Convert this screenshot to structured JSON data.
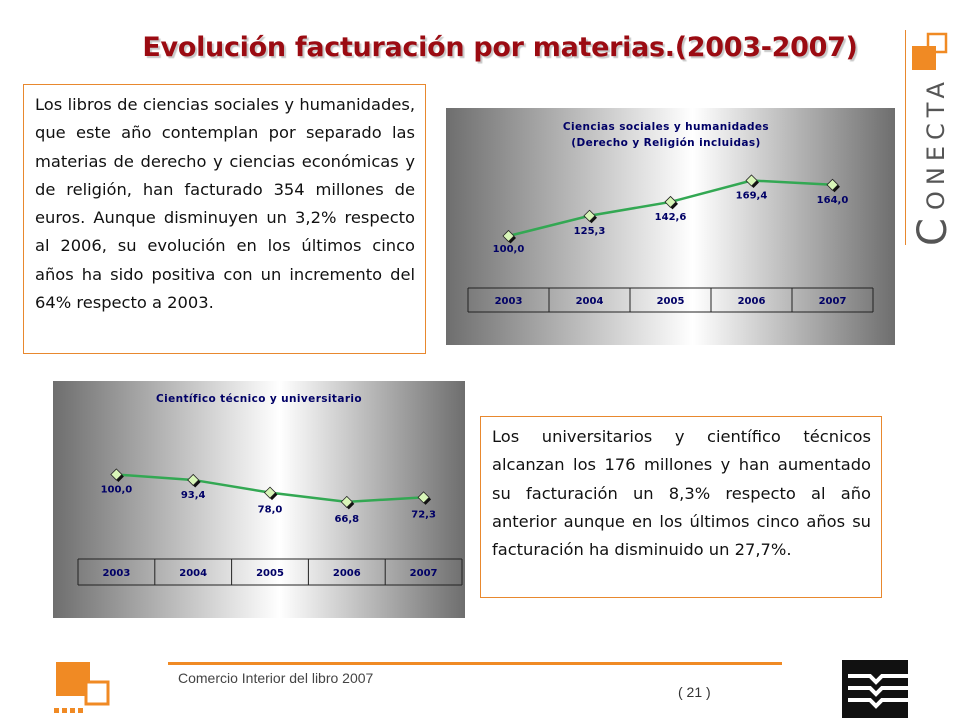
{
  "title": "Evolución facturación por materias.(2003-2007)",
  "paragraph1": "Los libros de ciencias sociales y humanidades, que este año contemplan por separado las materias de derecho y ciencias económicas y de religión, han facturado 354 millones de euros. Aunque disminuyen un 3,2% respecto al 2006, su evolución en los últimos cinco años ha sido positiva con un incremento del 64% respecto a 2003.",
  "paragraph2": "Los universitarios y científico técnicos alcanzan los 176 millones y han aumentado su facturación un 8,3% respecto al año anterior aunque en los últimos cinco años su facturación ha disminuido un 27,7%.",
  "brand": {
    "letter_c": "C",
    "rest": "ONECTA"
  },
  "footer": {
    "text": "Comercio Interior del libro 2007",
    "page": "( 21 )"
  },
  "colors": {
    "accent": "#f08a24",
    "title": "#9b0b12",
    "line": "#33a853",
    "chart_text": "#000066"
  },
  "chart_data": [
    {
      "type": "line",
      "title": "Ciencias sociales y humanidades",
      "subtitle": "(Derecho y Religión incluidas)",
      "categories": [
        "2003",
        "2004",
        "2005",
        "2006",
        "2007"
      ],
      "values": [
        100.0,
        125.3,
        142.6,
        169.4,
        164.0
      ],
      "value_labels": [
        "100,0",
        "125,3",
        "142,6",
        "169,4",
        "164,0"
      ],
      "ylim": [
        40,
        200
      ],
      "grid": false,
      "legend": "none"
    },
    {
      "type": "line",
      "title": "Científico técnico y universitario",
      "subtitle": "",
      "categories": [
        "2003",
        "2004",
        "2005",
        "2006",
        "2007"
      ],
      "values": [
        100.0,
        93.4,
        78.0,
        66.8,
        72.3
      ],
      "value_labels": [
        "100,0",
        "93,4",
        "78,0",
        "66,8",
        "72,3"
      ],
      "ylim": [
        0,
        160
      ],
      "grid": false,
      "legend": "none"
    }
  ]
}
